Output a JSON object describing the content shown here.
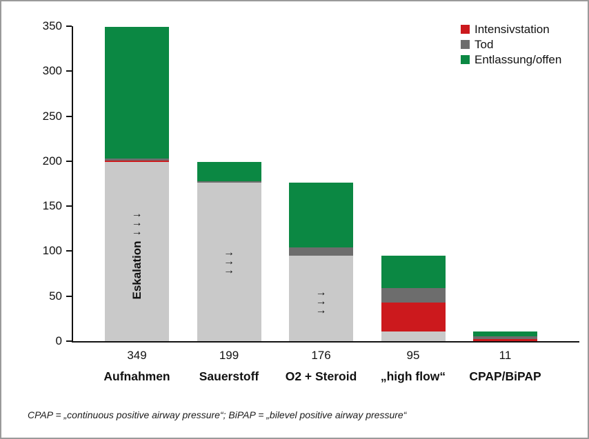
{
  "figure": {
    "background": "#ffffff",
    "border_color": "#9a9a9a"
  },
  "legend": {
    "position": "top-right",
    "items": [
      {
        "label": "Intensivstation",
        "color": "#cc191d"
      },
      {
        "label": "Tod",
        "color": "#6d6d6d"
      },
      {
        "label": "Entlassung/offen",
        "color": "#0b8843"
      }
    ]
  },
  "chart_data": {
    "type": "bar",
    "stacked": true,
    "title": "",
    "xlabel": "",
    "ylabel": "",
    "ylim": [
      0,
      350
    ],
    "yticks": [
      0,
      50,
      100,
      150,
      200,
      250,
      300,
      350
    ],
    "grid": false,
    "categories": [
      "Aufnahmen",
      "Sauerstoff",
      "O2 + Steroid",
      "„high flow“",
      "CPAP/BiPAP"
    ],
    "totals": [
      349,
      199,
      176,
      95,
      11
    ],
    "series": [
      {
        "name": "Eskalation (weiter eskaliert)",
        "color": "#c9c9c9",
        "values": [
          199,
          176,
          95,
          11,
          0
        ]
      },
      {
        "name": "Intensivstation",
        "color": "#cc191d",
        "values": [
          2,
          0,
          0,
          32,
          2
        ]
      },
      {
        "name": "Tod",
        "color": "#6d6d6d",
        "values": [
          2,
          2,
          9,
          16,
          3
        ]
      },
      {
        "name": "Entlassung/offen",
        "color": "#0b8843",
        "values": [
          146,
          21,
          72,
          36,
          6
        ]
      }
    ],
    "annotations": {
      "escalation_label": "Eskalation",
      "escalation_label_bar_index": 0,
      "arrow_glyph": "→",
      "arrow_column_bar_indices": [
        0,
        1,
        2
      ]
    }
  },
  "footer": {
    "text": "CPAP = „continuous positive airway pressure“; BiPAP = „bilevel positive airway pressure“"
  }
}
